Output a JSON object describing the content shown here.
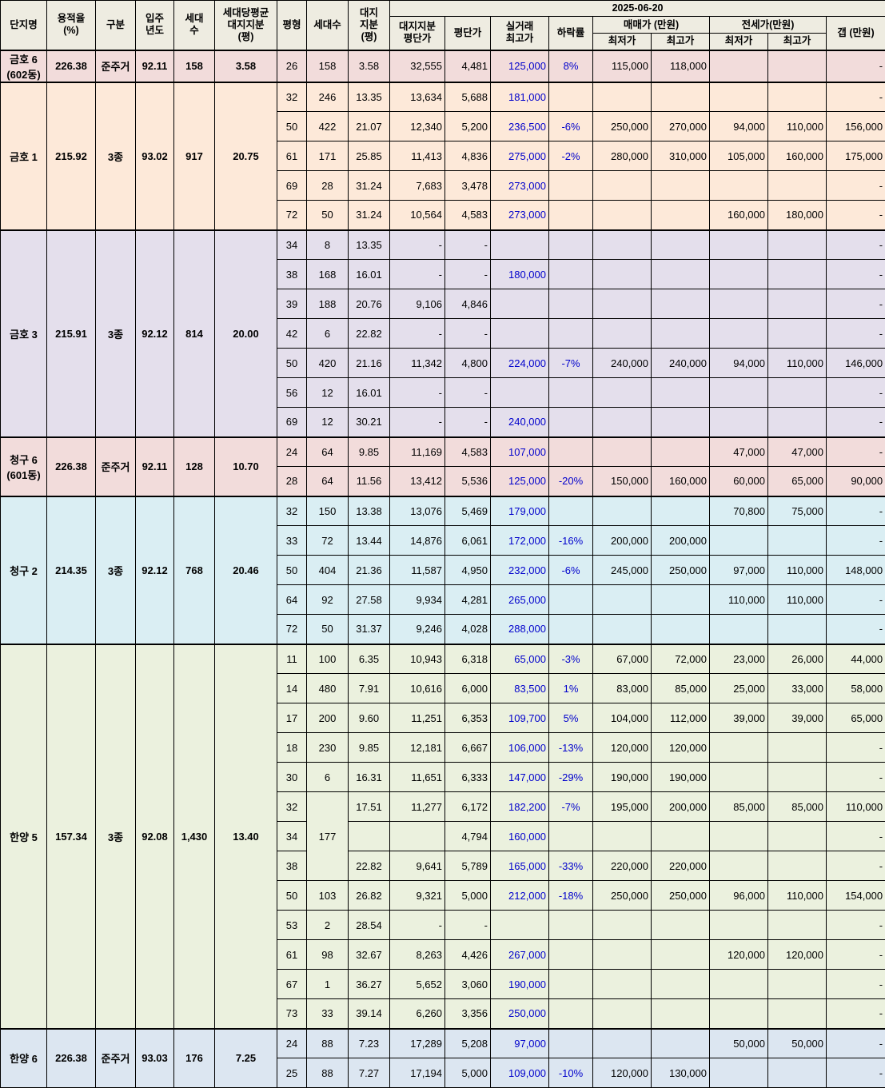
{
  "header": {
    "name": "단지명",
    "far": "용적율\n(%)",
    "kind": "구분",
    "year": "입주\n년도",
    "units": "세대\n수",
    "avg": "세대당평균\n대지지분\n(평)",
    "py": "평형",
    "punits": "세대수",
    "land": "대지\n지분\n(평)",
    "date": "2025-06-20",
    "landPrice": "대지지분\n평단가",
    "price": "평단가",
    "top": "실거래\n최고가",
    "drop": "하락률",
    "sale": "매매가 (만원)",
    "jeon": "전세가(만원)",
    "gap": "갭 (만원)",
    "saleMin": "최저가",
    "saleMax": "최고가",
    "jeonMin": "최저가",
    "jeonMax": "최고가"
  },
  "groups": [
    {
      "name": "금호 6\n(602동)",
      "far": 226.38,
      "kind": "준주거",
      "year": 92.11,
      "units": 158,
      "avg": 3.58,
      "color": "#f2dcdb",
      "rows": [
        [
          26,
          158,
          3.58,
          "32,555",
          "4,481",
          "125,000",
          "8%",
          "115,000",
          "118,000",
          null,
          null,
          "-"
        ]
      ]
    },
    {
      "name": "금호 1",
      "far": 215.92,
      "kind": "3종",
      "year": 93.02,
      "units": 917,
      "avg": 20.75,
      "color": "#fde9d9",
      "rows": [
        [
          32,
          246,
          13.35,
          "13,634",
          "5,688",
          "181,000",
          null,
          null,
          null,
          null,
          null,
          "-"
        ],
        [
          50,
          422,
          21.07,
          "12,340",
          "5,200",
          "236,500",
          "-6%",
          "250,000",
          "270,000",
          "94,000",
          "110,000",
          "156,000"
        ],
        [
          61,
          171,
          25.85,
          "11,413",
          "4,836",
          "275,000",
          "-2%",
          "280,000",
          "310,000",
          "105,000",
          "160,000",
          "175,000"
        ],
        [
          69,
          28,
          31.24,
          "7,683",
          "3,478",
          "273,000",
          null,
          null,
          null,
          null,
          null,
          "-"
        ],
        [
          72,
          50,
          31.24,
          "10,564",
          "4,583",
          "273,000",
          null,
          null,
          null,
          "160,000",
          "180,000",
          "-"
        ]
      ]
    },
    {
      "name": "금호 3",
      "far": 215.91,
      "kind": "3종",
      "year": 92.12,
      "units": 814,
      "avg": "20.00",
      "color": "#e4dfec",
      "rows": [
        [
          34,
          8,
          13.35,
          "-",
          "-",
          null,
          null,
          null,
          null,
          null,
          null,
          "-"
        ],
        [
          38,
          168,
          16.01,
          "-",
          "-",
          "180,000",
          null,
          null,
          null,
          null,
          null,
          "-"
        ],
        [
          39,
          188,
          20.76,
          "9,106",
          "4,846",
          null,
          null,
          null,
          null,
          null,
          null,
          "-"
        ],
        [
          42,
          6,
          22.82,
          "-",
          "-",
          null,
          null,
          null,
          null,
          null,
          null,
          "-"
        ],
        [
          50,
          420,
          21.16,
          "11,342",
          "4,800",
          "224,000",
          "-7%",
          "240,000",
          "240,000",
          "94,000",
          "110,000",
          "146,000"
        ],
        [
          56,
          12,
          16.01,
          "-",
          "-",
          null,
          null,
          null,
          null,
          null,
          null,
          "-"
        ],
        [
          69,
          12,
          30.21,
          "-",
          "-",
          "240,000",
          null,
          null,
          null,
          null,
          null,
          "-"
        ]
      ]
    },
    {
      "name": "청구 6\n(601동)",
      "far": 226.38,
      "kind": "준주거",
      "year": 92.11,
      "units": 128,
      "avg": "10.70",
      "color": "#f2dcdb",
      "rows": [
        [
          24,
          64,
          9.85,
          "11,169",
          "4,583",
          "107,000",
          null,
          null,
          null,
          "47,000",
          "47,000",
          "-"
        ],
        [
          28,
          64,
          11.56,
          "13,412",
          "5,536",
          "125,000",
          "-20%",
          "150,000",
          "160,000",
          "60,000",
          "65,000",
          "90,000"
        ]
      ]
    },
    {
      "name": "청구 2",
      "far": 214.35,
      "kind": "3종",
      "year": 92.12,
      "units": 768,
      "avg": 20.46,
      "color": "#daeef3",
      "rows": [
        [
          32,
          150,
          13.38,
          "13,076",
          "5,469",
          "179,000",
          null,
          null,
          null,
          "70,800",
          "75,000",
          "-"
        ],
        [
          33,
          72,
          13.44,
          "14,876",
          "6,061",
          "172,000",
          "-16%",
          "200,000",
          "200,000",
          null,
          null,
          "-"
        ],
        [
          50,
          404,
          21.36,
          "11,587",
          "4,950",
          "232,000",
          "-6%",
          "245,000",
          "250,000",
          "97,000",
          "110,000",
          "148,000"
        ],
        [
          64,
          92,
          27.58,
          "9,934",
          "4,281",
          "265,000",
          null,
          null,
          null,
          "110,000",
          "110,000",
          "-"
        ],
        [
          72,
          50,
          31.37,
          "9,246",
          "4,028",
          "288,000",
          null,
          null,
          null,
          null,
          null,
          "-"
        ]
      ]
    },
    {
      "name": "한양 5",
      "far": 157.34,
      "kind": "3종",
      "year": 92.08,
      "units": "1,430",
      "avg": "13.40",
      "color": "#ebf1de",
      "rows": [
        [
          11,
          100,
          6.35,
          "10,943",
          "6,318",
          "65,000",
          "-3%",
          "67,000",
          "72,000",
          "23,000",
          "26,000",
          "44,000"
        ],
        [
          14,
          480,
          7.91,
          "10,616",
          "6,000",
          "83,500",
          "1%",
          "83,000",
          "85,000",
          "25,000",
          "33,000",
          "58,000"
        ],
        [
          17,
          200,
          "9.60",
          "11,251",
          "6,353",
          "109,700",
          "5%",
          "104,000",
          "112,000",
          "39,000",
          "39,000",
          "65,000"
        ],
        [
          18,
          230,
          9.85,
          "12,181",
          "6,667",
          "106,000",
          "-13%",
          "120,000",
          "120,000",
          null,
          null,
          "-"
        ],
        [
          30,
          6,
          16.31,
          "11,651",
          "6,333",
          "147,000",
          "-29%",
          "190,000",
          "190,000",
          null,
          null,
          "-"
        ],
        [
          32,
          177,
          17.51,
          "11,277",
          "6,172",
          "182,200",
          "-7%",
          "195,000",
          "200,000",
          "85,000",
          "85,000",
          "110,000"
        ],
        [
          34,
          null,
          null,
          null,
          "4,794",
          "160,000",
          null,
          null,
          null,
          null,
          null,
          "-"
        ],
        [
          38,
          null,
          22.82,
          "9,641",
          "5,789",
          "165,000",
          "-33%",
          "220,000",
          "220,000",
          null,
          null,
          "-"
        ],
        [
          50,
          103,
          26.82,
          "9,321",
          "5,000",
          "212,000",
          "-18%",
          "250,000",
          "250,000",
          "96,000",
          "110,000",
          "154,000"
        ],
        [
          53,
          2,
          28.54,
          "-",
          "-",
          null,
          null,
          null,
          null,
          null,
          null,
          "-"
        ],
        [
          61,
          98,
          32.67,
          "8,263",
          "4,426",
          "267,000",
          null,
          null,
          null,
          "120,000",
          "120,000",
          "-"
        ],
        [
          67,
          1,
          36.27,
          "5,652",
          "3,060",
          "190,000",
          null,
          null,
          null,
          null,
          null,
          "-"
        ],
        [
          73,
          33,
          39.14,
          "6,260",
          "3,356",
          "250,000",
          null,
          null,
          null,
          null,
          null,
          "-"
        ]
      ]
    },
    {
      "name": "한양 6",
      "far": 226.38,
      "kind": "준주거",
      "year": 93.03,
      "units": 176,
      "avg": 7.25,
      "color": "#dce6f1",
      "rows": [
        [
          24,
          88,
          7.23,
          "17,289",
          "5,208",
          "97,000",
          null,
          null,
          null,
          "50,000",
          "50,000",
          "-"
        ],
        [
          25,
          88,
          7.27,
          "17,194",
          "5,000",
          "109,000",
          "-10%",
          "120,000",
          "130,000",
          null,
          null,
          "-"
        ]
      ]
    }
  ]
}
